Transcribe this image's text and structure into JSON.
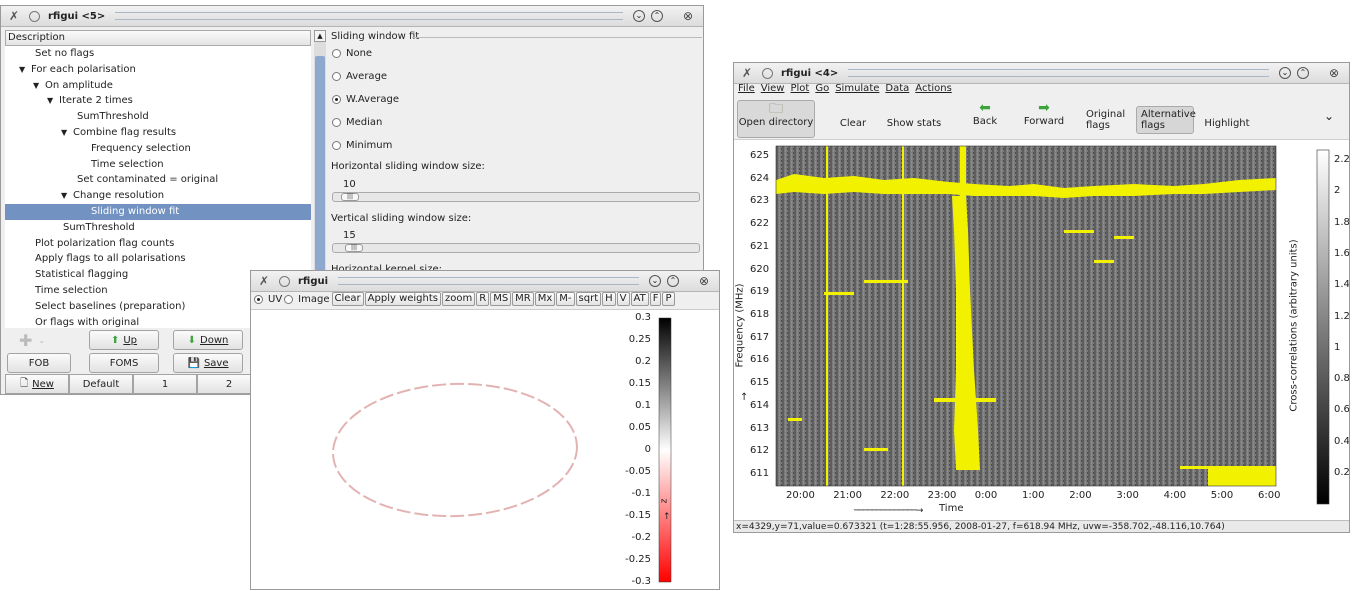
{
  "win5": {
    "title": "rfigui <5>",
    "tree_header": "Description",
    "tree": [
      {
        "label": "Set no flags",
        "indent": 1,
        "arrow": ""
      },
      {
        "label": "For each polarisation",
        "indent": 1,
        "arrow": "down"
      },
      {
        "label": "On amplitude",
        "indent": 2,
        "arrow": "down"
      },
      {
        "label": "Iterate 2 times",
        "indent": 3,
        "arrow": "down"
      },
      {
        "label": "SumThreshold",
        "indent": 4,
        "arrow": ""
      },
      {
        "label": "Combine flag results",
        "indent": 4,
        "arrow": "down"
      },
      {
        "label": "Frequency selection",
        "indent": 5,
        "arrow": ""
      },
      {
        "label": "Time selection",
        "indent": 5,
        "arrow": ""
      },
      {
        "label": "Set contaminated = original",
        "indent": 4,
        "arrow": ""
      },
      {
        "label": "Change resolution",
        "indent": 4,
        "arrow": "down"
      },
      {
        "label": "Sliding window fit",
        "indent": 5,
        "arrow": "",
        "selected": true
      },
      {
        "label": "SumThreshold",
        "indent": 3,
        "arrow": ""
      },
      {
        "label": "Plot polarization flag counts",
        "indent": 1,
        "arrow": ""
      },
      {
        "label": "Apply flags to all polarisations",
        "indent": 1,
        "arrow": ""
      },
      {
        "label": "Statistical flagging",
        "indent": 1,
        "arrow": ""
      },
      {
        "label": "Time selection",
        "indent": 1,
        "arrow": ""
      },
      {
        "label": "Select baselines (preparation)",
        "indent": 1,
        "arrow": ""
      },
      {
        "label": "Or flags with original",
        "indent": 1,
        "arrow": ""
      }
    ],
    "props": {
      "group_title": "Sliding window fit",
      "options": [
        "None",
        "Average",
        "W.Average",
        "Median",
        "Minimum"
      ],
      "selected": "W.Average",
      "h_label": "Horizontal sliding window size:",
      "h_value": "10",
      "v_label": "Vertical sliding window size:",
      "v_value": "15",
      "k_label": "Horizontal kernel size:"
    },
    "buttons": {
      "up": "Up",
      "down": "Down",
      "fob": "FOB",
      "foms": "FOMS",
      "save": "Save",
      "new": "New",
      "default": "Default",
      "one": "1",
      "two": "2"
    }
  },
  "winuv": {
    "title": "rfigui",
    "radio_uv": "UV",
    "radio_image": "Image",
    "tools": [
      "Clear",
      "Apply weights",
      "zoom",
      "R",
      "MS",
      "MR",
      "Mx",
      "M-",
      "sqrt",
      "H",
      "V",
      "AT",
      "F",
      "P"
    ],
    "colorbar_ticks": [
      "0.3",
      "0.25",
      "0.2",
      "0.15",
      "0.1",
      "0.05",
      "0",
      "-0.05",
      "-0.1",
      "-0.15",
      "-0.2",
      "-0.25",
      "-0.3"
    ],
    "colorbar_label": "z"
  },
  "win4": {
    "title": "rfigui <4>",
    "menu": [
      "File",
      "View",
      "Plot",
      "Go",
      "Simulate",
      "Data",
      "Actions"
    ],
    "toolbar": {
      "open": "Open directory",
      "clear": "Clear",
      "stats": "Show stats",
      "back": "Back",
      "forward": "Forward",
      "orig": "Original flags",
      "alt": "Alternative flags",
      "highlight": "Highlight"
    },
    "y_ticks": [
      "625",
      "624",
      "623",
      "622",
      "621",
      "620",
      "619",
      "618",
      "617",
      "616",
      "615",
      "614",
      "613",
      "612",
      "611"
    ],
    "y_label": "Frequency (MHz)",
    "x_ticks": [
      "20:00",
      "21:00",
      "22:00",
      "23:00",
      "0:00",
      "1:00",
      "2:00",
      "3:00",
      "4:00",
      "5:00",
      "6:00"
    ],
    "x_label": "Time",
    "cb_ticks": [
      "2.2",
      "2",
      "1.8",
      "1.6",
      "1.4",
      "1.2",
      "1",
      "0.8",
      "0.6",
      "0.4",
      "0.2"
    ],
    "cb_label": "Cross-correlations (arbitrary units)",
    "status": "x=4329,y=71,value=0.673321 (t=1:28:55.956, 2008-01-27, f=618.94 MHz, uvw=-358.702,-48.116,10.764)"
  },
  "colors": {
    "flag": "#f2f200",
    "selection": "#7292c2",
    "accent": "#3d6fb5"
  }
}
